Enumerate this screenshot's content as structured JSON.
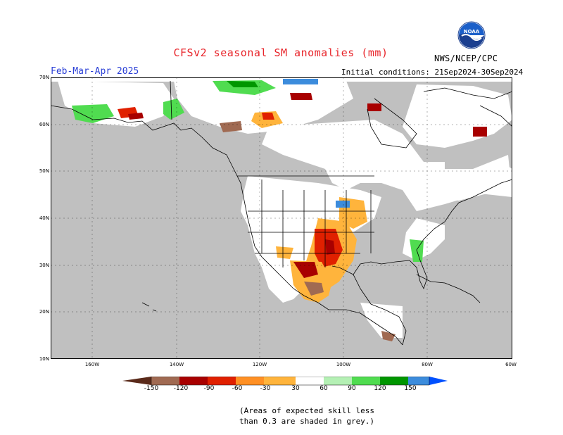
{
  "title": "CFSv2 seasonal SM anomalies (mm)",
  "period": "Feb-Mar-Apr 2025",
  "initial_conditions": "Initial conditions: 21Sep2024-30Sep2024",
  "agency": "NWS/NCEP/CPC",
  "logo_text": "NOAA",
  "lat_labels": [
    "70N",
    "60N",
    "50N",
    "40N",
    "30N",
    "20N",
    "10N"
  ],
  "lon_labels": [
    "160W",
    "140W",
    "120W",
    "100W",
    "80W",
    "60W"
  ],
  "colorbar": {
    "labels": [
      "-150",
      "-120",
      "-90",
      "-60",
      "-30",
      "30",
      "60",
      "90",
      "120",
      "150"
    ],
    "colors": [
      "#5a2a1a",
      "#a06a52",
      "#a80000",
      "#e02000",
      "#ff5a00",
      "#ffb43c",
      "#ffffff",
      "#b4f0b4",
      "#50dc50",
      "#009600",
      "#3c8cdc",
      "#0050ff"
    ]
  },
  "note_line1": "(Areas of expected skill less",
  "note_line2": "than 0.3 are shaded in grey.)",
  "colors": {
    "grey": "#c0c0c0",
    "title": "#e8242a",
    "period": "#2a3fd6"
  }
}
